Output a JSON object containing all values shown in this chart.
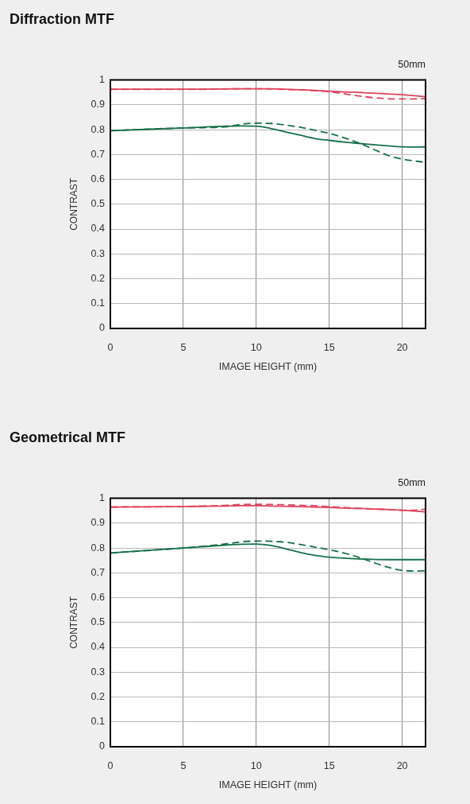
{
  "chart_data": [
    {
      "type": "line",
      "title": "Diffraction MTF",
      "subtitle": "50mm",
      "xlabel": "IMAGE HEIGHT (mm)",
      "ylabel": "CONTRAST",
      "x": [
        0,
        5,
        8,
        9,
        10,
        11,
        12,
        13,
        14,
        15,
        16,
        17,
        18,
        19,
        20,
        21,
        21.6
      ],
      "series": [
        {
          "color": "#e0435c",
          "line_style": "solid",
          "values": [
            0.963,
            0.963,
            0.964,
            0.965,
            0.965,
            0.965,
            0.963,
            0.961,
            0.958,
            0.955,
            0.952,
            0.95,
            0.947,
            0.944,
            0.941,
            0.936,
            0.933
          ]
        },
        {
          "color": "#e0435c",
          "line_style": "dashed",
          "values": [
            0.962,
            0.962,
            0.964,
            0.965,
            0.965,
            0.964,
            0.962,
            0.96,
            0.957,
            0.953,
            0.945,
            0.936,
            0.929,
            0.925,
            0.924,
            0.924,
            0.925
          ]
        },
        {
          "color": "#17704a",
          "line_style": "solid",
          "values": [
            0.796,
            0.807,
            0.814,
            0.815,
            0.814,
            0.805,
            0.791,
            0.778,
            0.765,
            0.757,
            0.75,
            0.745,
            0.74,
            0.735,
            0.731,
            0.73,
            0.731
          ]
        },
        {
          "color": "#17704a",
          "line_style": "dashed",
          "values": [
            0.796,
            0.807,
            0.812,
            0.822,
            0.826,
            0.825,
            0.819,
            0.81,
            0.798,
            0.785,
            0.768,
            0.747,
            0.722,
            0.697,
            0.682,
            0.673,
            0.669
          ]
        }
      ],
      "xlim": [
        0,
        21.6
      ],
      "ylim": [
        0,
        1
      ],
      "xticks": [
        0,
        5,
        10,
        15,
        20
      ],
      "yticks": [
        0,
        0.1,
        0.2,
        0.3,
        0.4,
        0.5,
        0.6,
        0.7,
        0.8,
        0.9,
        1
      ],
      "grid": true,
      "legend": false,
      "marker": "none"
    },
    {
      "type": "line",
      "title": "Geometrical MTF",
      "subtitle": "50mm",
      "xlabel": "IMAGE HEIGHT (mm)",
      "ylabel": "CONTRAST",
      "x": [
        0,
        5,
        8,
        9,
        10,
        11,
        12,
        13,
        14,
        15,
        16,
        17,
        18,
        19,
        20,
        21,
        21.6
      ],
      "series": [
        {
          "color": "#e0435c",
          "line_style": "solid",
          "values": [
            0.965,
            0.967,
            0.969,
            0.97,
            0.97,
            0.969,
            0.968,
            0.966,
            0.965,
            0.963,
            0.961,
            0.959,
            0.957,
            0.955,
            0.952,
            0.948,
            0.945
          ]
        },
        {
          "color": "#e0435c",
          "line_style": "dashed",
          "values": [
            0.965,
            0.967,
            0.972,
            0.975,
            0.976,
            0.975,
            0.974,
            0.972,
            0.97,
            0.966,
            0.963,
            0.96,
            0.957,
            0.955,
            0.952,
            0.953,
            0.956
          ]
        },
        {
          "color": "#17704a",
          "line_style": "solid",
          "values": [
            0.78,
            0.8,
            0.812,
            0.815,
            0.816,
            0.81,
            0.797,
            0.782,
            0.77,
            0.763,
            0.759,
            0.756,
            0.754,
            0.753,
            0.753,
            0.753,
            0.753
          ]
        },
        {
          "color": "#17704a",
          "line_style": "dashed",
          "values": [
            0.78,
            0.8,
            0.817,
            0.825,
            0.828,
            0.827,
            0.823,
            0.814,
            0.804,
            0.793,
            0.78,
            0.763,
            0.742,
            0.723,
            0.71,
            0.707,
            0.708
          ]
        }
      ],
      "xlim": [
        0,
        21.6
      ],
      "ylim": [
        0,
        1
      ],
      "xticks": [
        0,
        5,
        10,
        15,
        20
      ],
      "yticks": [
        0,
        0.1,
        0.2,
        0.3,
        0.4,
        0.5,
        0.6,
        0.7,
        0.8,
        0.9,
        1
      ],
      "grid": true,
      "legend": false,
      "marker": "none"
    }
  ]
}
